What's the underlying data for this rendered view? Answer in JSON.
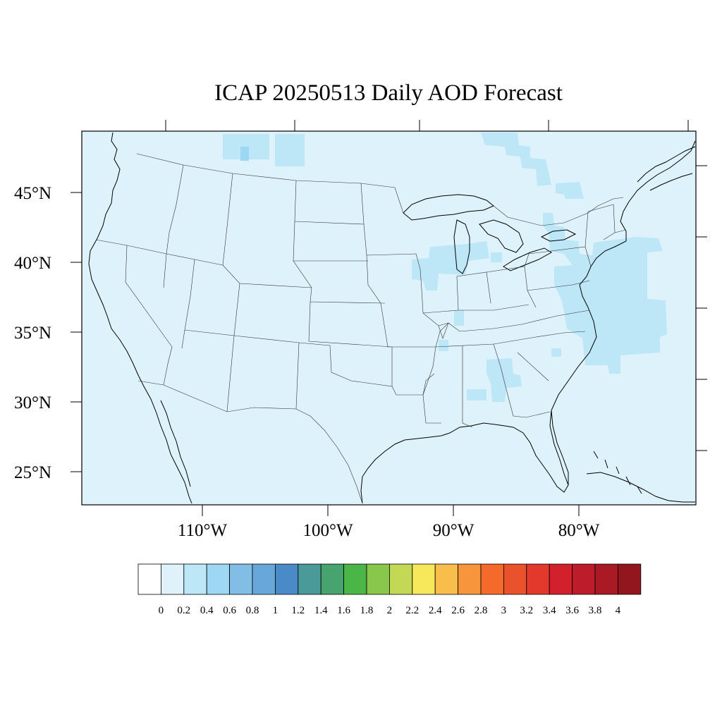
{
  "title": "ICAP 20250513 Daily AOD Forecast",
  "colors": {
    "background": "#def2fb",
    "palette": [
      "#ffffff",
      "#dff2fb",
      "#bde6f7",
      "#9dd7f3",
      "#82bde6",
      "#67a7da",
      "#4a8ac7",
      "#4a9a9a",
      "#48a46f",
      "#4bb648",
      "#88c64c",
      "#c3d855",
      "#f6e85a",
      "#f8bd4b",
      "#f7953c",
      "#f36a2a",
      "#ea522c",
      "#e3392c",
      "#d2202c",
      "#bd1c2a",
      "#a91a24",
      "#92161d"
    ]
  },
  "latitude_labels": [
    "45°N",
    "40°N",
    "35°N",
    "30°N",
    "25°N"
  ],
  "longitude_labels": [
    "110°W",
    "100°W",
    "90°W",
    "80°W"
  ],
  "colorbar": {
    "labels": [
      "0",
      "0.2",
      "0.4",
      "0.6",
      "0.8",
      "1",
      "1.2",
      "1.4",
      "1.6",
      "1.8",
      "2",
      "2.2",
      "2.4",
      "2.6",
      "2.8",
      "3",
      "3.2",
      "3.4",
      "3.6",
      "3.8",
      "4"
    ]
  },
  "aod_regions": [
    {
      "region": "northern plains (Montana border)",
      "level": "0.2–0.4"
    },
    {
      "region": "northern Great Lakes / Ontario",
      "level": "0.2–0.4"
    },
    {
      "region": "Illinois / Indiana",
      "level": "0.2–0.4"
    },
    {
      "region": "Mid-Atlantic coast and offshore Atlantic",
      "level": "0.2–0.4"
    },
    {
      "region": "Alabama / Georgia",
      "level": "0.2–0.4"
    },
    {
      "region": "rest of domain",
      "level": "0–0.2"
    }
  ]
}
